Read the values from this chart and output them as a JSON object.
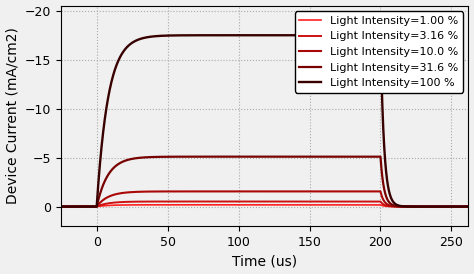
{
  "title": "",
  "xlabel": "Time (us)",
  "ylabel": "Device Current (mA/cm2)",
  "xlim": [
    -25,
    262
  ],
  "ylim": [
    2.0,
    -20.5
  ],
  "xticks": [
    0,
    50,
    100,
    150,
    200,
    250
  ],
  "yticks": [
    0,
    -5,
    -10,
    -15,
    -20
  ],
  "light_on": 0,
  "light_off": 200,
  "rise_tau": 8,
  "fall_tau": 2.5,
  "intensities": [
    {
      "label": "Light Intensity=1.00 %",
      "color": "#ff2020",
      "steady": -0.18,
      "lw": 1.2
    },
    {
      "label": "Light Intensity=3.16 %",
      "color": "#cc1010",
      "steady": -0.52,
      "lw": 1.4
    },
    {
      "label": "Light Intensity=10.0 %",
      "color": "#aa0808",
      "steady": -1.55,
      "lw": 1.5
    },
    {
      "label": "Light Intensity=31.6 %",
      "color": "#780000",
      "steady": -5.1,
      "lw": 1.6
    },
    {
      "label": "Light Intensity=100 %",
      "color": "#380000",
      "steady": -17.5,
      "lw": 1.7
    }
  ],
  "grid_color": "#aaaaaa",
  "bg_color": "#f0f0f0",
  "legend_fontsize": 8.0,
  "axis_label_fontsize": 10,
  "tick_fontsize": 9
}
